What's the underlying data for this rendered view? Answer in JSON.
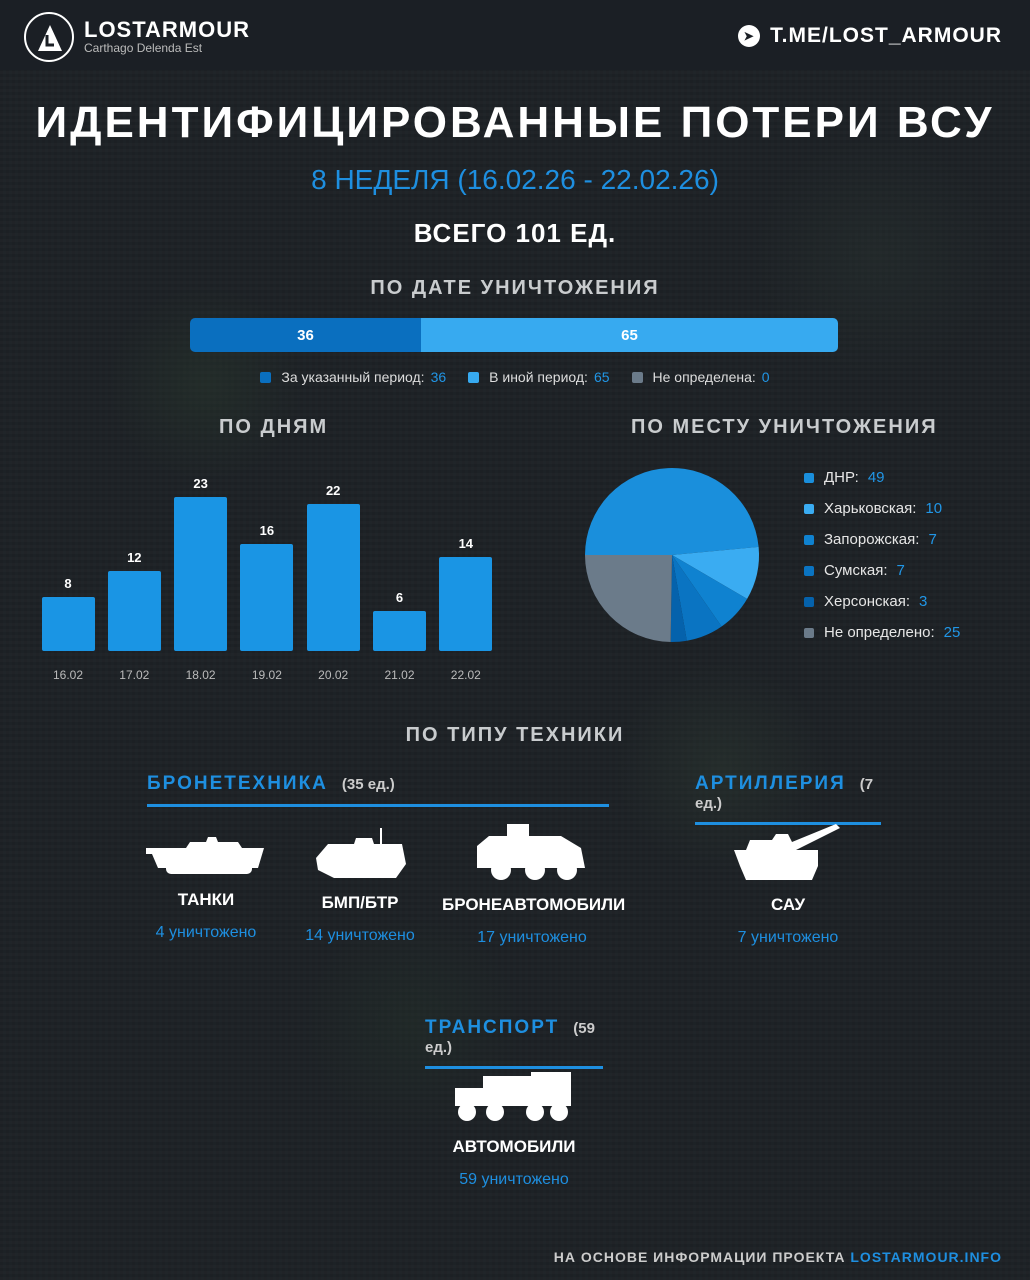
{
  "header": {
    "brand": "LOSTARMOUR",
    "tagline": "Carthago Delenda Est",
    "telegram": "T.ME/LOST_ARMOUR",
    "icons": [
      "logo-icon",
      "telegram-icon"
    ]
  },
  "title": "ИДЕНТИФИЦИРОВАННЫЕ ПОТЕРИ ВСУ",
  "subtitle": "8 НЕДЕЛЯ (16.02.26 - 22.02.26)",
  "total": "ВСЕГО 101 ЕД.",
  "colors": {
    "accent": "#1e8fe0",
    "dark_blue": "#0a6fbf",
    "light_blue": "#37aaf0",
    "gray": "#6b7b8a",
    "bar": "#1a95e4"
  },
  "chart_data": [
    {
      "type": "bar",
      "orientation": "horizontal-stacked",
      "title": "ПО ДАТЕ УНИЧТОЖЕНИЯ",
      "series": [
        {
          "name": "За указанный период:",
          "value": 36,
          "label": "36",
          "color": "#0a6fbf"
        },
        {
          "name": "В иной период:",
          "value": 65,
          "label": "65",
          "color": "#37aaf0"
        },
        {
          "name": "Не определена:",
          "value": 0,
          "label": "0",
          "color": "#6b7b8a"
        }
      ]
    },
    {
      "type": "bar",
      "title": "ПО ДНЯМ",
      "categories": [
        "16.02",
        "17.02",
        "18.02",
        "19.02",
        "20.02",
        "21.02",
        "22.02"
      ],
      "values": [
        8,
        12,
        23,
        16,
        22,
        6,
        14
      ],
      "labels": [
        "8",
        "12",
        "23",
        "16",
        "22",
        "6",
        "14"
      ],
      "ylim": [
        0,
        23
      ]
    },
    {
      "type": "pie",
      "title": "ПО МЕСТУ УНИЧТОЖЕНИЯ",
      "start": "left",
      "direction": "clockwise",
      "slices": [
        {
          "name": "ДНР:",
          "value": 49,
          "label": "49",
          "color": "#1a8fdc"
        },
        {
          "name": "Харьковская:",
          "value": 10,
          "label": "10",
          "color": "#3aacf2"
        },
        {
          "name": "Запорожская:",
          "value": 7,
          "label": "7",
          "color": "#0f82d0"
        },
        {
          "name": "Сумская:",
          "value": 7,
          "label": "7",
          "color": "#0a74c2"
        },
        {
          "name": "Херсонская:",
          "value": 3,
          "label": "3",
          "color": "#0562ac"
        },
        {
          "name": "Не определено:",
          "value": 25,
          "label": "25",
          "color": "#6b7b8a"
        }
      ]
    }
  ],
  "types": {
    "title": "ПО ТИПУ ТЕХНИКИ",
    "armor": {
      "name": "БРОНЕТЕХНИКА",
      "count": "(35 ед.)",
      "items": [
        {
          "name": "ТАНКИ",
          "count": "4 уничтожено"
        },
        {
          "name": "БМП/БТР",
          "count": "14 уничтожено"
        },
        {
          "name": "БРОНЕАВТОМОБИЛИ",
          "count": "17 уничтожено"
        }
      ]
    },
    "artillery": {
      "name": "АРТИЛЛЕРИЯ",
      "count": "(7 ед.)",
      "items": [
        {
          "name": "САУ",
          "count": "7 уничтожено"
        }
      ]
    },
    "transport": {
      "name": "ТРАНСПОРТ",
      "count": "(59 ед.)",
      "items": [
        {
          "name": "АВТОМОБИЛИ",
          "count": "59 уничтожено"
        }
      ]
    }
  },
  "footer": {
    "text": "НА ОСНОВЕ ИНФОРМАЦИИ ПРОЕКТА ",
    "link": "LOSTARMOUR.INFO"
  }
}
